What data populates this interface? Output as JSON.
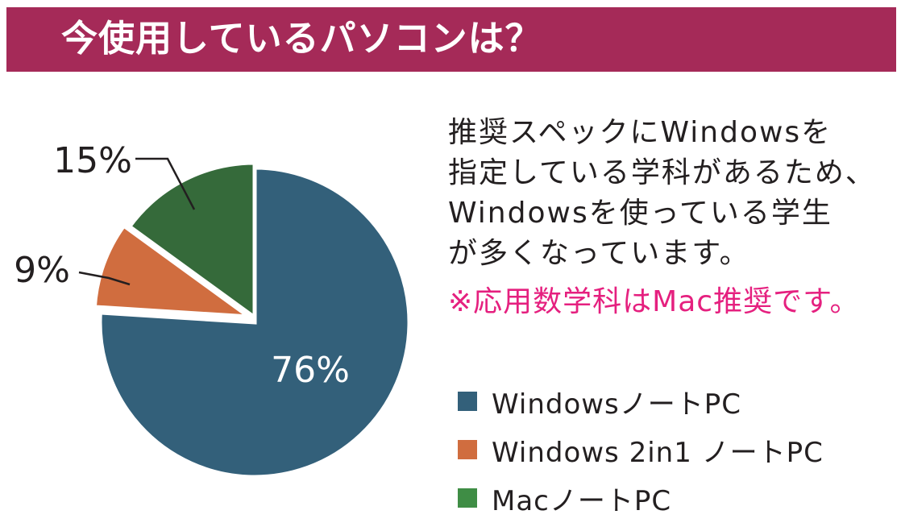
{
  "header": {
    "title": "今使用しているパソコンは？"
  },
  "description": {
    "lines": [
      "推奨スペックにWindowsを",
      "指定している学科があるため、",
      "Windowsを使っている学生",
      "が多くなっています。"
    ],
    "note": "※応用数学科はMac推奨です。"
  },
  "colors": {
    "header_bg": "#a52a58",
    "note_text": "#e5207f"
  },
  "chart_data": {
    "type": "pie",
    "slices": [
      {
        "label": "WindowsノートPC",
        "value": 76,
        "display": "76%",
        "color": "#33607a"
      },
      {
        "label": "Windows 2in1 ノートPC",
        "value": 9,
        "display": "9%",
        "color": "#d06d3f"
      },
      {
        "label": "MacノートPC",
        "value": 15,
        "display": "15%",
        "color": "#356a3a"
      }
    ],
    "legend": {
      "placement": "right",
      "entries": [
        {
          "label": "WindowsノートPC",
          "color": "#33607a"
        },
        {
          "label": "Windows 2in1 ノートPC",
          "color": "#d06d3f"
        },
        {
          "label": "MacノートPC",
          "color": "#3f8d45"
        }
      ]
    }
  }
}
